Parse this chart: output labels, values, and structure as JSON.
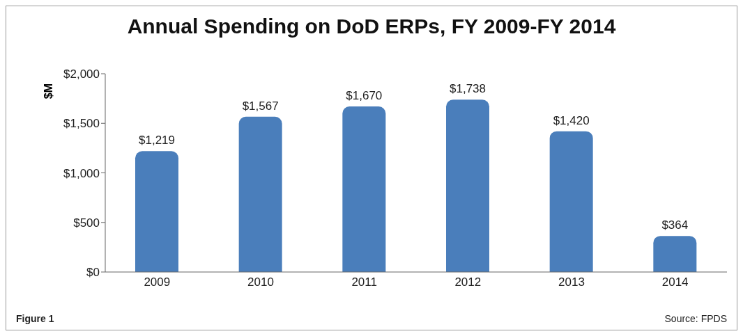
{
  "chart_data": {
    "type": "bar",
    "title": "Annual Spending on DoD ERPs, FY 2009-FY 2014",
    "ylabel": "$M",
    "categories": [
      "2009",
      "2010",
      "2011",
      "2012",
      "2013",
      "2014"
    ],
    "values": [
      1219,
      1567,
      1670,
      1738,
      1420,
      364
    ],
    "value_labels": [
      "$1,219",
      "$1,567",
      "$1,670",
      "$1,738",
      "$1,420",
      "$364"
    ],
    "color": "#4a7ebb",
    "ylim": [
      0,
      2000
    ],
    "yticks": [
      {
        "value": 0,
        "label": "$0"
      },
      {
        "value": 500,
        "label": "$500"
      },
      {
        "value": 1000,
        "label": "$1,000"
      },
      {
        "value": 1500,
        "label": "$1,500"
      },
      {
        "value": 2000,
        "label": "$2,000"
      }
    ],
    "grid": false,
    "annotations": [
      "Figure 1",
      "Source: FPDS"
    ]
  }
}
